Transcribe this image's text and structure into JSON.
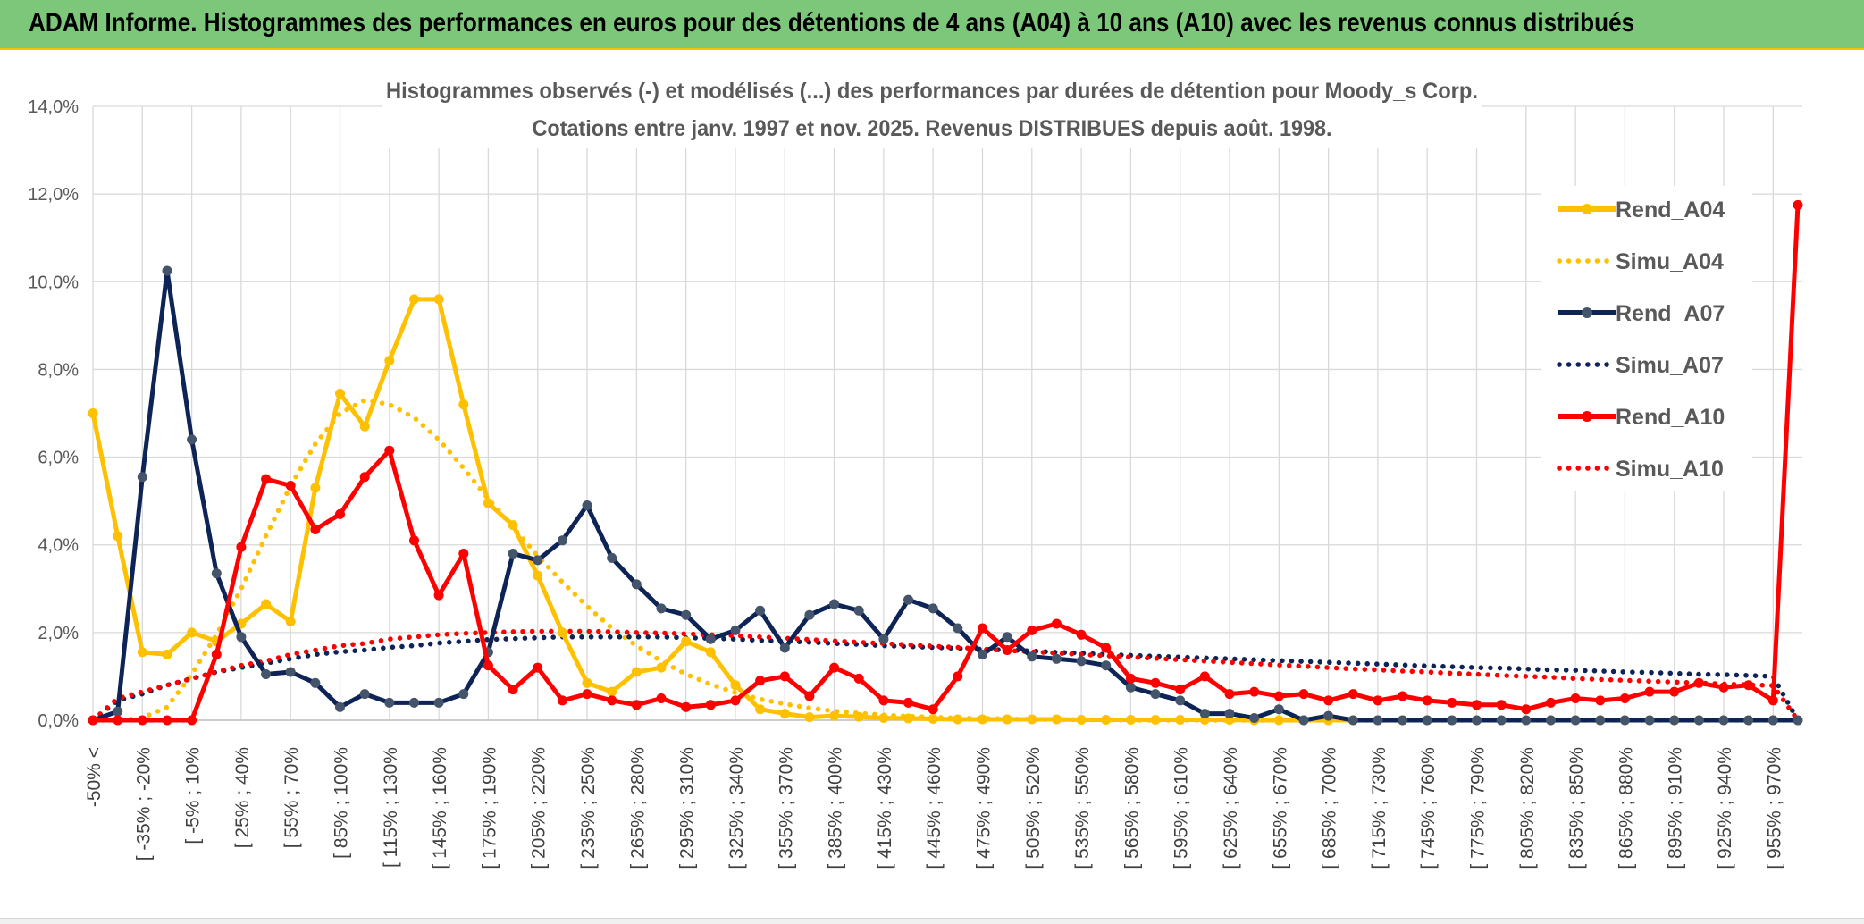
{
  "banner": {
    "title": "ADAM Informe. Histogrammes des performances en euros pour des détentions de 4 ans (A04) à 10 ans (A10) avec les revenus connus distribués"
  },
  "colors": {
    "rend_a04": "#ffc000",
    "rend_a07": "#0e2356",
    "rend_a10": "#ff0000",
    "banner": "#7dc77a"
  },
  "chart_data": {
    "type": "line",
    "title": "Histogrammes observés (-) et modélisés (...) des performances par durées de détention pour Moody_s Corp.",
    "subtitle": "Cotations entre janv. 1997 et nov. 2025. Revenus DISTRIBUES depuis août. 1998.",
    "xlabel": "",
    "ylabel": "",
    "ylim": [
      0,
      14
    ],
    "y_ticks": [
      "0,0%",
      "2,0%",
      "4,0%",
      "6,0%",
      "8,0%",
      "10,0%",
      "12,0%",
      "14,0%"
    ],
    "grid": true,
    "legend_position": "right",
    "x_tick_labels": [
      "-50% <",
      "[ -35% ; -20%",
      "[ -5% ; 10%",
      "[ 25% ; 40%",
      "[ 55% ; 70%",
      "[ 85% ; 100%",
      "[ 115% ; 130%",
      "[ 145% ; 160%",
      "[ 175% ; 190%",
      "[ 205% ; 220%",
      "[ 235% ; 250%",
      "[ 265% ; 280%",
      "[ 295% ; 310%",
      "[ 325% ; 340%",
      "[ 355% ; 370%",
      "[ 385% ; 400%",
      "[ 415% ; 430%",
      "[ 445% ; 460%",
      "[ 475% ; 490%",
      "[ 505% ; 520%",
      "[ 535% ; 550%",
      "[ 565% ; 580%",
      "[ 595% ; 610%",
      "[ 625% ; 640%",
      "[ 655% ; 670%",
      "[ 685% ; 700%",
      "[ 715% ; 730%",
      "[ 745% ; 760%",
      "[ 775% ; 790%",
      "[ 805% ; 820%",
      "[ 835% ; 850%",
      "[ 865% ; 880%",
      "[ 895% ; 910%",
      "[ 925% ; 940%",
      "[ 955% ; 970%"
    ],
    "series": [
      {
        "name": "Rend_A04",
        "style": "solid",
        "values": [
          7.0,
          4.2,
          1.55,
          1.5,
          2.0,
          1.8,
          2.2,
          2.65,
          2.25,
          5.3,
          7.45,
          6.7,
          8.2,
          9.6,
          9.6,
          7.2,
          4.95,
          4.45,
          3.3,
          2.0,
          0.85,
          0.65,
          1.1,
          1.2,
          1.8,
          1.55,
          0.8,
          0.25,
          0.15,
          0.07,
          0.1,
          0.08,
          0.05,
          0.04,
          0.03,
          0.02,
          0.02,
          0.02,
          0.02,
          0.02,
          0.01,
          0.01,
          0.01,
          0.01,
          0.01,
          0.01,
          0.01,
          0.0,
          0.0,
          0.0,
          0.0,
          0.0,
          0.0,
          0.0,
          0.0,
          0.0,
          0.0,
          0.0,
          0.0,
          0.0,
          0.0,
          0.0,
          0.0,
          0.0,
          0.0,
          0.0,
          0.0,
          0.0,
          0.0,
          0.0
        ]
      },
      {
        "name": "Simu_A04",
        "style": "dotted",
        "values": [
          0.0,
          0.0,
          0.05,
          0.3,
          1.05,
          1.95,
          3.0,
          4.2,
          5.35,
          6.3,
          7.0,
          7.3,
          7.2,
          6.9,
          6.4,
          5.75,
          5.05,
          4.4,
          3.75,
          3.15,
          2.6,
          2.1,
          1.7,
          1.35,
          1.05,
          0.82,
          0.63,
          0.48,
          0.37,
          0.28,
          0.21,
          0.16,
          0.12,
          0.09,
          0.07,
          0.05,
          0.04,
          0.03,
          0.02,
          0.015,
          0.01,
          0.01,
          0.0,
          0.0,
          0.0,
          0.0,
          0.0,
          0.0,
          0.0,
          0.0,
          0.0,
          0.0,
          0.0,
          0.0,
          0.0,
          0.0,
          0.0,
          0.0,
          0.0,
          0.0,
          0.0,
          0.0,
          0.0,
          0.0,
          0.0,
          0.0,
          0.0,
          0.0,
          0.0,
          0.0
        ]
      },
      {
        "name": "Rend_A07",
        "style": "solid",
        "values": [
          0.0,
          0.2,
          5.55,
          10.25,
          6.4,
          3.35,
          1.9,
          1.05,
          1.1,
          0.85,
          0.3,
          0.6,
          0.4,
          0.4,
          0.4,
          0.6,
          1.55,
          3.8,
          3.65,
          4.1,
          4.9,
          3.7,
          3.1,
          2.55,
          2.4,
          1.85,
          2.05,
          2.5,
          1.65,
          2.4,
          2.65,
          2.5,
          1.85,
          2.75,
          2.55,
          2.1,
          1.5,
          1.9,
          1.45,
          1.4,
          1.35,
          1.25,
          0.75,
          0.6,
          0.45,
          0.15,
          0.15,
          0.05,
          0.25,
          0.0,
          0.1,
          0.0,
          0.0,
          0.0,
          0.0,
          0.0,
          0.0,
          0.0,
          0.0,
          0.0,
          0.0,
          0.0,
          0.0,
          0.0,
          0.0,
          0.0,
          0.0,
          0.0,
          0.0,
          0.0
        ]
      },
      {
        "name": "Simu_A07",
        "style": "dotted",
        "values": [
          0.0,
          0.45,
          0.6,
          0.8,
          0.95,
          1.1,
          1.2,
          1.3,
          1.4,
          1.5,
          1.56,
          1.6,
          1.66,
          1.7,
          1.76,
          1.8,
          1.84,
          1.86,
          1.88,
          1.9,
          1.9,
          1.9,
          1.9,
          1.9,
          1.88,
          1.87,
          1.85,
          1.82,
          1.8,
          1.78,
          1.75,
          1.73,
          1.7,
          1.68,
          1.66,
          1.64,
          1.62,
          1.6,
          1.58,
          1.55,
          1.53,
          1.5,
          1.48,
          1.46,
          1.44,
          1.42,
          1.4,
          1.38,
          1.36,
          1.34,
          1.32,
          1.3,
          1.28,
          1.26,
          1.24,
          1.22,
          1.2,
          1.19,
          1.17,
          1.15,
          1.14,
          1.12,
          1.1,
          1.09,
          1.07,
          1.05,
          1.04,
          1.02,
          1.0,
          0.0
        ]
      },
      {
        "name": "Rend_A10",
        "style": "solid",
        "values": [
          0.0,
          0.0,
          0.0,
          0.0,
          0.0,
          1.5,
          3.95,
          5.5,
          5.35,
          4.35,
          4.7,
          5.55,
          6.15,
          4.1,
          2.85,
          3.8,
          1.25,
          0.7,
          1.2,
          0.45,
          0.6,
          0.45,
          0.35,
          0.5,
          0.3,
          0.35,
          0.45,
          0.9,
          1.0,
          0.55,
          1.2,
          0.95,
          0.45,
          0.4,
          0.25,
          1.0,
          2.1,
          1.6,
          2.05,
          2.2,
          1.95,
          1.65,
          0.95,
          0.85,
          0.7,
          1.0,
          0.6,
          0.65,
          0.55,
          0.6,
          0.45,
          0.6,
          0.45,
          0.55,
          0.45,
          0.4,
          0.35,
          0.35,
          0.25,
          0.4,
          0.5,
          0.45,
          0.5,
          0.65,
          0.65,
          0.85,
          0.75,
          0.8,
          0.45,
          11.75
        ]
      },
      {
        "name": "Simu_A10",
        "style": "dotted",
        "values": [
          0.0,
          0.5,
          0.65,
          0.8,
          0.95,
          1.1,
          1.25,
          1.35,
          1.5,
          1.6,
          1.7,
          1.75,
          1.85,
          1.9,
          1.95,
          1.98,
          2.0,
          2.02,
          2.03,
          2.03,
          2.03,
          2.02,
          2.0,
          1.99,
          1.97,
          1.95,
          1.93,
          1.9,
          1.87,
          1.84,
          1.81,
          1.78,
          1.75,
          1.72,
          1.69,
          1.66,
          1.62,
          1.59,
          1.56,
          1.53,
          1.5,
          1.47,
          1.44,
          1.41,
          1.38,
          1.35,
          1.32,
          1.29,
          1.26,
          1.23,
          1.2,
          1.17,
          1.15,
          1.12,
          1.1,
          1.07,
          1.05,
          1.02,
          1.0,
          0.98,
          0.95,
          0.93,
          0.91,
          0.89,
          0.87,
          0.85,
          0.83,
          0.81,
          0.79,
          0.0
        ]
      }
    ]
  }
}
